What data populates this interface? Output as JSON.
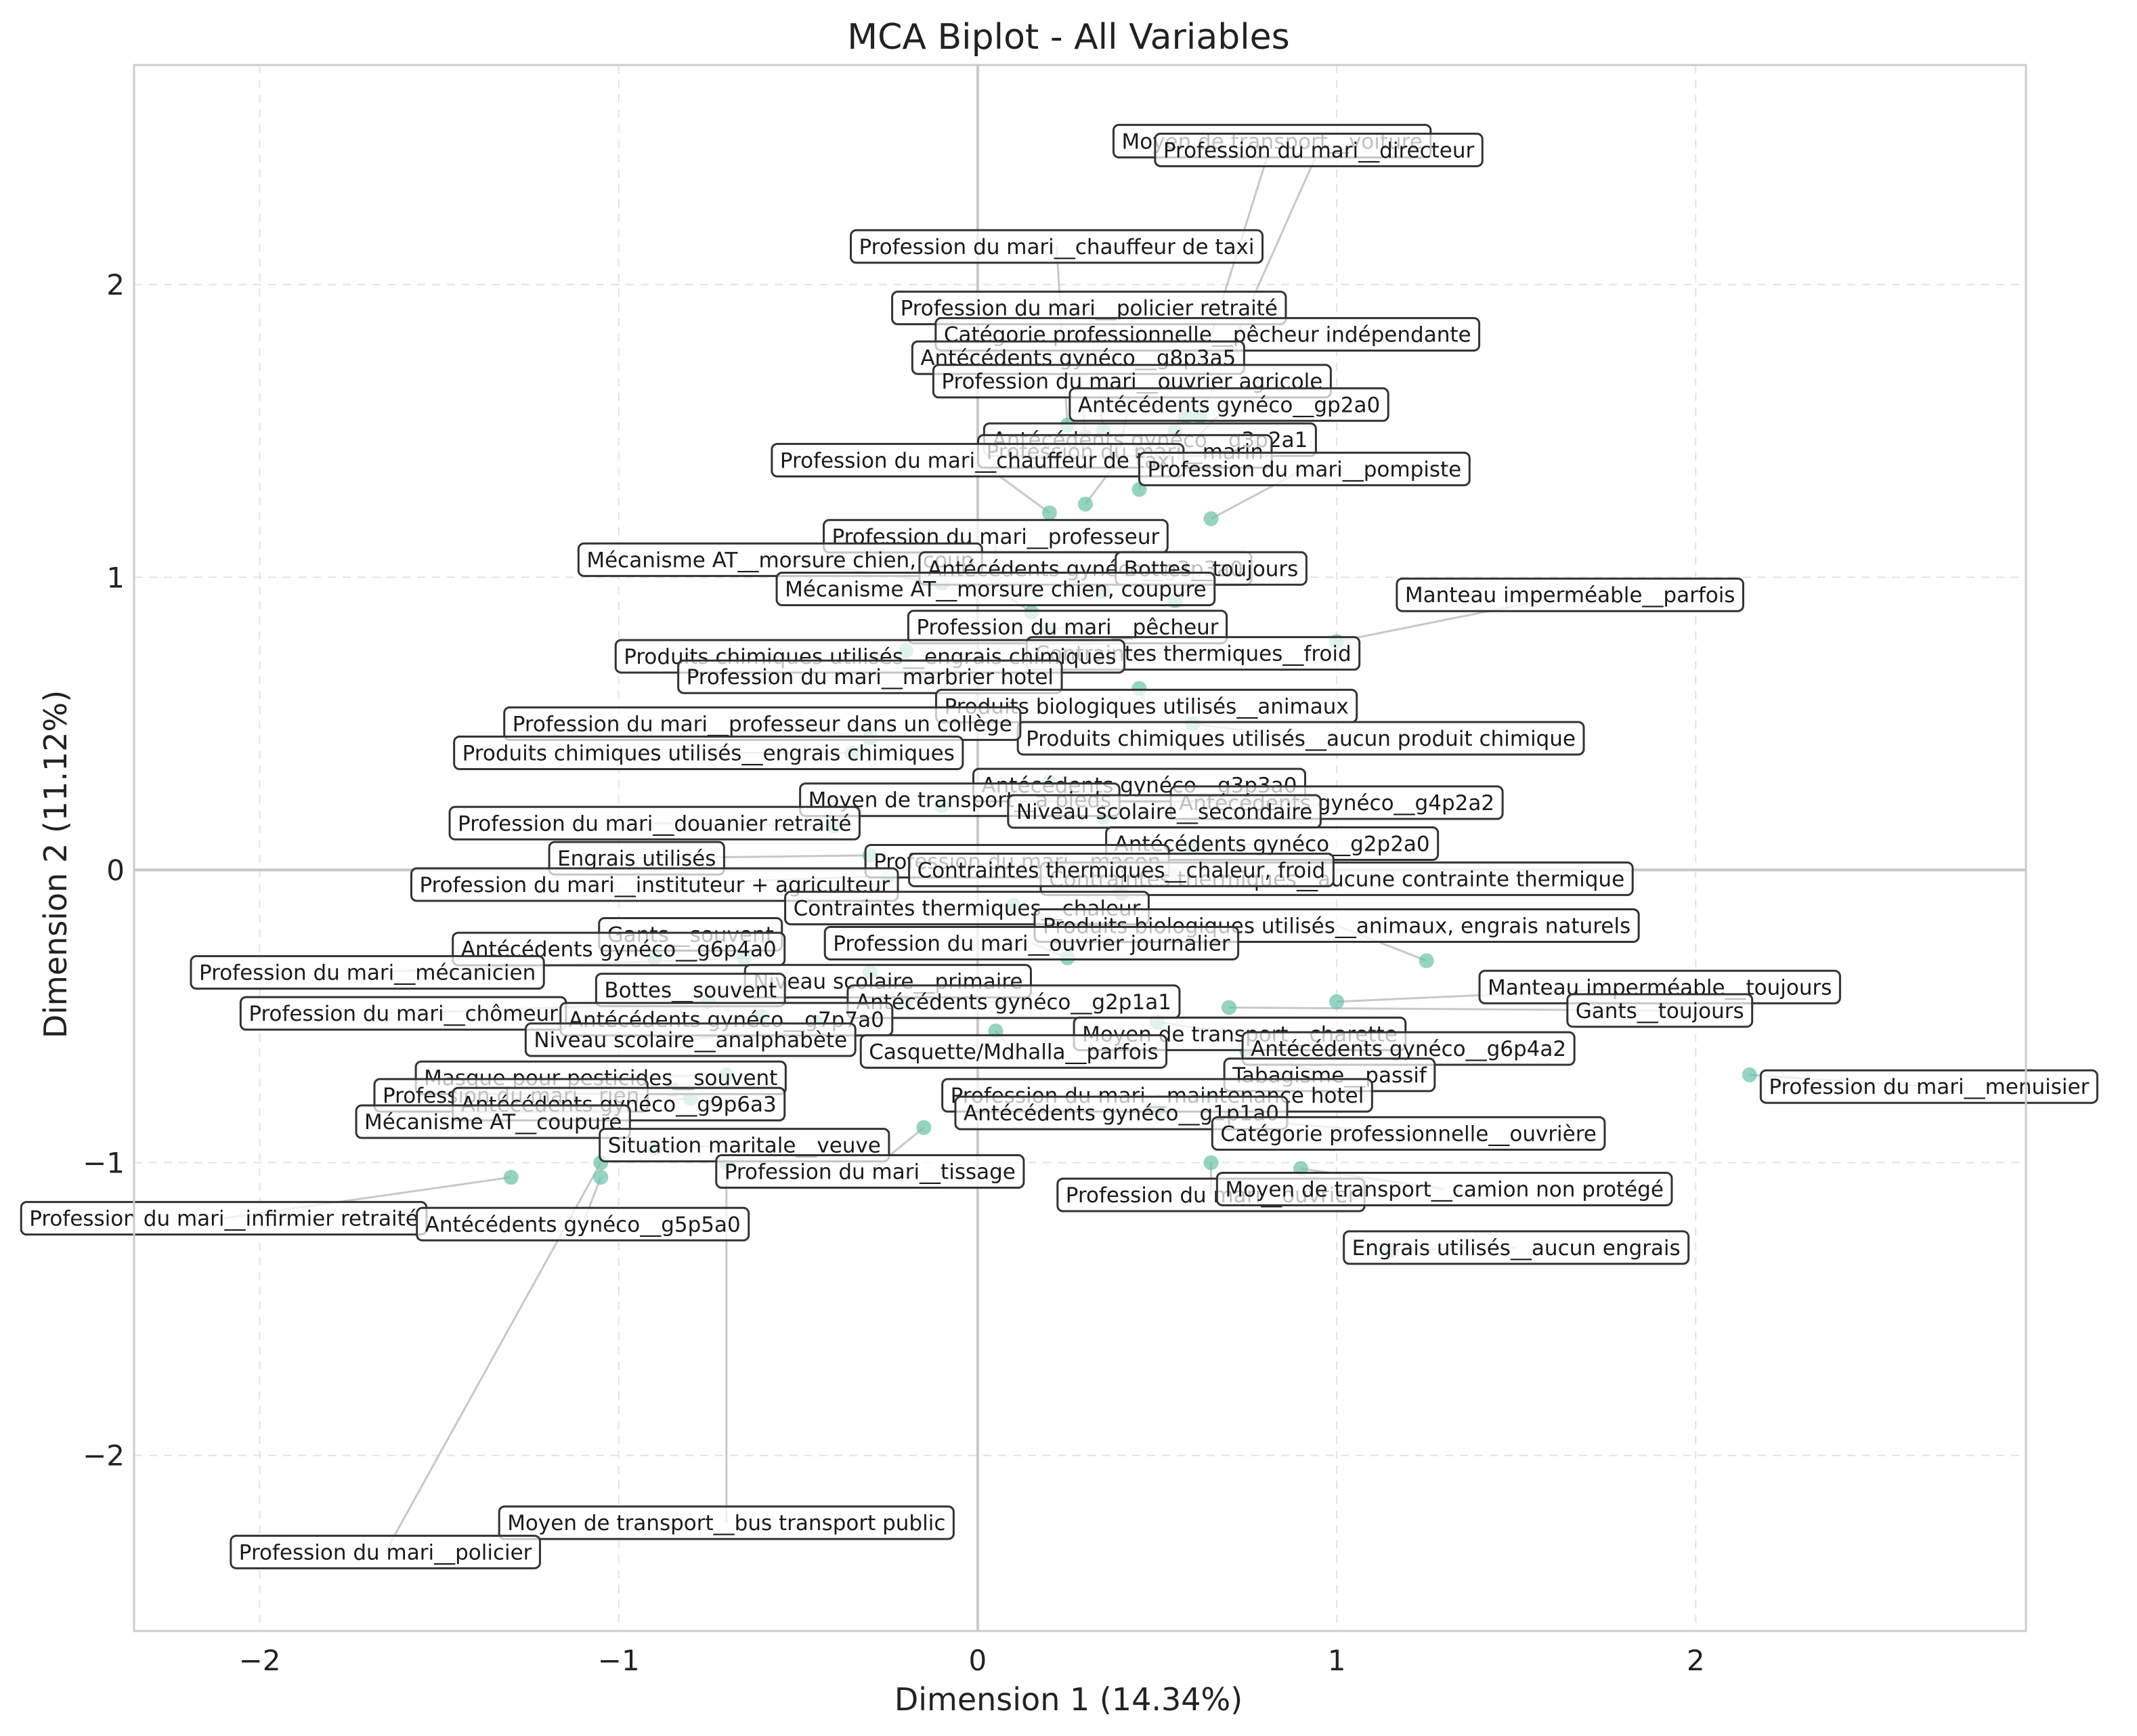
{
  "chart_data": {
    "type": "scatter",
    "title": "MCA Biplot - All Variables",
    "xlabel": "Dimension 1 (14.34%)",
    "ylabel": "Dimension 2 (11.12%)",
    "xlim": [
      -2.35,
      2.92
    ],
    "ylim": [
      -2.6,
      2.75
    ],
    "xticks": [
      -2,
      -1,
      0,
      1,
      2
    ],
    "yticks": [
      -2,
      -1,
      0,
      1,
      2
    ],
    "xtick_labels": [
      "−2",
      "−1",
      "0",
      "1",
      "2"
    ],
    "ytick_labels": [
      "−2",
      "−1",
      "0",
      "1",
      "2"
    ],
    "grid": true,
    "point_color": "#66c2a5",
    "line_color": "#bbbbbb",
    "points": [
      {
        "x": 0.58,
        "y": 1.55,
        "label": "Moyen de transport__voiture",
        "lx": 0.82,
        "ly": 2.49
      },
      {
        "x": 0.62,
        "y": 1.55,
        "label": "Profession du mari__directeur",
        "lx": 0.95,
        "ly": 2.46
      },
      {
        "x": 0.25,
        "y": 1.52,
        "label": "Profession du mari__chauffeur de taxi",
        "lx": 0.22,
        "ly": 2.13
      },
      {
        "x": 0.35,
        "y": 1.5,
        "label": "Profession du mari__policier retraité",
        "lx": 0.31,
        "ly": 1.92
      },
      {
        "x": 0.55,
        "y": 1.5,
        "label": "Catégorie professionnelle__pêcheur indépendante",
        "lx": 0.64,
        "ly": 1.83
      },
      {
        "x": 0.3,
        "y": 1.48,
        "label": "Antécédents gynéco__g8p3a5",
        "lx": 0.28,
        "ly": 1.75
      },
      {
        "x": 0.4,
        "y": 1.45,
        "label": "Profession du mari__ouvrier agricole",
        "lx": 0.43,
        "ly": 1.67
      },
      {
        "x": 0.55,
        "y": 1.4,
        "label": "Antécédents gynéco__gp2a0",
        "lx": 0.7,
        "ly": 1.59
      },
      {
        "x": 0.45,
        "y": 1.3,
        "label": "Antécédents gynéco__g3p2a1",
        "lx": 0.48,
        "ly": 1.47
      },
      {
        "x": 0.3,
        "y": 1.25,
        "label": "Profession du mari__marin",
        "lx": 0.41,
        "ly": 1.43
      },
      {
        "x": 0.2,
        "y": 1.22,
        "label": "Profession du mari__chauffeur de taxi",
        "lx": 0.0,
        "ly": 1.4
      },
      {
        "x": 0.65,
        "y": 1.2,
        "label": "Profession du mari__pompiste",
        "lx": 0.91,
        "ly": 1.37
      },
      {
        "x": 0.05,
        "y": 1.0,
        "label": "Profession du mari__professeur",
        "lx": 0.05,
        "ly": 1.14
      },
      {
        "x": -0.1,
        "y": 0.98,
        "label": "Mécanisme AT__morsure chien, coup",
        "lx": -0.55,
        "ly": 1.06
      },
      {
        "x": 0.35,
        "y": 0.95,
        "label": "Antécédents gynéco__g3p3a0",
        "lx": 0.3,
        "ly": 1.03
      },
      {
        "x": 0.55,
        "y": 0.92,
        "label": "Bottes__toujours",
        "lx": 0.65,
        "ly": 1.03
      },
      {
        "x": 1.0,
        "y": 0.78,
        "label": "Manteau imperméable__parfois",
        "lx": 1.65,
        "ly": 0.94
      },
      {
        "x": 0.15,
        "y": 0.88,
        "label": "Mécanisme AT__morsure chien, coupure",
        "lx": 0.05,
        "ly": 0.96
      },
      {
        "x": 0.2,
        "y": 0.82,
        "label": "Profession du mari__pêcheur",
        "lx": 0.25,
        "ly": 0.83
      },
      {
        "x": 0.3,
        "y": 0.75,
        "label": "Contraintes thermiques__froid",
        "lx": 0.6,
        "ly": 0.74
      },
      {
        "x": -0.2,
        "y": 0.75,
        "label": "Produits chimiques utilisés__engrais chimiques",
        "lx": -0.3,
        "ly": 0.73
      },
      {
        "x": -0.2,
        "y": 0.7,
        "label": "Profession du mari__marbrier hotel",
        "lx": -0.3,
        "ly": 0.66
      },
      {
        "x": 0.45,
        "y": 0.62,
        "label": "Produits biologiques utilisés__animaux",
        "lx": 0.47,
        "ly": 0.56
      },
      {
        "x": 0.6,
        "y": 0.5,
        "label": "Produits chimiques utilisés__aucun produit chimique",
        "lx": 0.9,
        "ly": 0.45
      },
      {
        "x": -0.3,
        "y": 0.45,
        "label": "Profession du mari__professeur dans un collège",
        "lx": -0.6,
        "ly": 0.5
      },
      {
        "x": -0.35,
        "y": 0.4,
        "label": "Produits chimiques utilisés__engrais chimiques",
        "lx": -0.75,
        "ly": 0.4
      },
      {
        "x": 0.2,
        "y": 0.3,
        "label": "Antécédents gynéco__g3p3a0",
        "lx": 0.45,
        "ly": 0.29
      },
      {
        "x": -0.1,
        "y": 0.22,
        "label": "Moyen de transport__a pieds",
        "lx": -0.05,
        "ly": 0.24
      },
      {
        "x": 0.8,
        "y": 0.2,
        "label": "Antécédents gynéco__g4p2a2",
        "lx": 1.0,
        "ly": 0.23
      },
      {
        "x": 0.35,
        "y": 0.18,
        "label": "Niveau scolaire__secondaire",
        "lx": 0.52,
        "ly": 0.2
      },
      {
        "x": -0.4,
        "y": 0.15,
        "label": "Profession du mari__douanier retraité",
        "lx": -0.9,
        "ly": 0.16
      },
      {
        "x": 0.6,
        "y": 0.08,
        "label": "Antécédents gynéco__g2p2a0",
        "lx": 0.82,
        "ly": 0.09
      },
      {
        "x": -0.3,
        "y": 0.05,
        "label": "Engrais utilisés",
        "lx": -0.95,
        "ly": 0.04
      },
      {
        "x": 0.1,
        "y": 0.02,
        "label": "Profession du mari__maçon",
        "lx": 0.11,
        "ly": 0.03
      },
      {
        "x": 0.55,
        "y": -0.02,
        "label": "Contraintes thermiques__aucune contrainte thermique",
        "lx": 1.0,
        "ly": -0.03
      },
      {
        "x": -0.25,
        "y": -0.02,
        "label": "Profession du mari__instituteur + agriculteur",
        "lx": -0.9,
        "ly": -0.05
      },
      {
        "x": 0.4,
        "y": -0.08,
        "label": "Contraintes thermiques__chaleur, froid",
        "lx": 0.4,
        "ly": 0.0
      },
      {
        "x": 0.1,
        "y": -0.12,
        "label": "Contraintes thermiques__chaleur",
        "lx": -0.03,
        "ly": -0.13
      },
      {
        "x": 1.25,
        "y": -0.31,
        "label": "Produits biologiques utilisés__animaux, engrais naturels",
        "lx": 1.0,
        "ly": -0.19
      },
      {
        "x": 0.25,
        "y": -0.3,
        "label": "Profession du mari__ouvrier journalier",
        "lx": 0.15,
        "ly": -0.25
      },
      {
        "x": -0.6,
        "y": -0.25,
        "label": "Gants__souvent",
        "lx": -0.8,
        "ly": -0.22
      },
      {
        "x": -0.9,
        "y": -0.3,
        "label": "Antécédents gynéco__g6p4a0",
        "lx": -1.0,
        "ly": -0.27
      },
      {
        "x": -0.65,
        "y": -0.3,
        "label": "Profession du mari__mécanicien",
        "lx": -1.7,
        "ly": -0.35
      },
      {
        "x": -0.3,
        "y": -0.35,
        "label": "Niveau scolaire__primaire",
        "lx": -0.25,
        "ly": -0.38
      },
      {
        "x": 1.0,
        "y": -0.45,
        "label": "Manteau imperméable__toujours",
        "lx": 1.9,
        "ly": -0.4
      },
      {
        "x": 0.7,
        "y": -0.47,
        "label": "Gants__toujours",
        "lx": 1.9,
        "ly": -0.48
      },
      {
        "x": -0.55,
        "y": -0.4,
        "label": "Bottes__souvent",
        "lx": -0.8,
        "ly": -0.41
      },
      {
        "x": -0.2,
        "y": -0.45,
        "label": "Antécédents gynéco__g2p1a1",
        "lx": 0.1,
        "ly": -0.45
      },
      {
        "x": -0.75,
        "y": -0.45,
        "label": "Profession du mari__chômeur",
        "lx": -1.6,
        "ly": -0.49
      },
      {
        "x": -0.6,
        "y": -0.5,
        "label": "Antécédents gynéco__g7p7a0",
        "lx": -0.7,
        "ly": -0.51
      },
      {
        "x": 0.5,
        "y": -0.52,
        "label": "Moyen de transport__charette",
        "lx": 0.73,
        "ly": -0.56
      },
      {
        "x": 0.85,
        "y": -0.58,
        "label": "Antécédents gynéco__g6p4a2",
        "lx": 1.2,
        "ly": -0.61
      },
      {
        "x": -0.45,
        "y": -0.52,
        "label": "Niveau scolaire__analphabète",
        "lx": -0.8,
        "ly": -0.58
      },
      {
        "x": 0.05,
        "y": -0.55,
        "label": "Casquette/Mdhalla__parfois",
        "lx": 0.1,
        "ly": -0.62
      },
      {
        "x": 0.75,
        "y": -0.62,
        "label": "Tabagisme__passif",
        "lx": 0.98,
        "ly": -0.7
      },
      {
        "x": -0.7,
        "y": -0.7,
        "label": "Masque pour pesticides__souvent",
        "lx": -1.05,
        "ly": -0.71
      },
      {
        "x": -0.85,
        "y": -0.75,
        "label": "Profession du mari__rien",
        "lx": -1.3,
        "ly": -0.77
      },
      {
        "x": -0.8,
        "y": -0.78,
        "label": "Antécédents gynéco__g9p6a3",
        "lx": -1.0,
        "ly": -0.8
      },
      {
        "x": 0.65,
        "y": -0.78,
        "label": "Profession du mari__maintenance hotel",
        "lx": 0.5,
        "ly": -0.77
      },
      {
        "x": 0.5,
        "y": -0.82,
        "label": "Antécédents gynéco__g1p1a0",
        "lx": 0.4,
        "ly": -0.83
      },
      {
        "x": -0.95,
        "y": -0.8,
        "label": "Mécanisme AT__coupure",
        "lx": -1.35,
        "ly": -0.86
      },
      {
        "x": 0.7,
        "y": -0.85,
        "label": "Catégorie professionnelle__ouvrière",
        "lx": 1.2,
        "ly": -0.9
      },
      {
        "x": -0.9,
        "y": -0.95,
        "label": "Situation maritale__veuve",
        "lx": -0.65,
        "ly": -0.94
      },
      {
        "x": -0.15,
        "y": -0.88,
        "label": "Profession du mari__tissage",
        "lx": -0.3,
        "ly": -1.03
      },
      {
        "x": 0.65,
        "y": -1.0,
        "label": "Profession du mari__ouvrier",
        "lx": 0.65,
        "ly": -1.11
      },
      {
        "x": 0.9,
        "y": -1.02,
        "label": "Moyen de transport__camion non protégé",
        "lx": 1.3,
        "ly": -1.09
      },
      {
        "x": 1.15,
        "y": -1.3,
        "label": "Engrais utilisés__aucun engrais",
        "lx": 1.5,
        "ly": -1.29
      },
      {
        "x": -1.3,
        "y": -1.05,
        "label": "Profession du mari__infirmier retraité",
        "lx": -2.1,
        "ly": -1.19
      },
      {
        "x": -1.05,
        "y": -1.05,
        "label": "Antécédents gynéco__g5p5a0",
        "lx": -1.1,
        "ly": -1.21
      },
      {
        "x": 2.15,
        "y": -0.7,
        "label": "Profession du mari__menuisier",
        "lx": 2.65,
        "ly": -0.74
      },
      {
        "x": -0.7,
        "y": -1.0,
        "label": "Moyen de transport__bus transport public",
        "lx": -0.7,
        "ly": -2.23
      },
      {
        "x": -1.05,
        "y": -1.0,
        "label": "Profession du mari__policier",
        "lx": -1.65,
        "ly": -2.33
      }
    ]
  }
}
